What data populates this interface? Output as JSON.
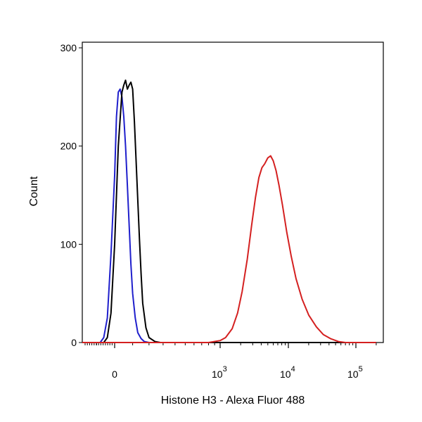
{
  "chart_data": {
    "type": "line",
    "title": "",
    "xlabel": "Histone H3 - Alexa Fluor 488",
    "ylabel": "Count",
    "x_scale": "biexponential",
    "xlim": [
      -300,
      200000
    ],
    "ylim": [
      0,
      300
    ],
    "y_ticks": [
      {
        "value": 0,
        "label": "0"
      },
      {
        "value": 100,
        "label": "100"
      },
      {
        "value": 200,
        "label": "200"
      },
      {
        "value": 300,
        "label": "300"
      }
    ],
    "x_ticks": [
      {
        "value": 0,
        "base": "0",
        "exp": ""
      },
      {
        "value": 1000,
        "base": "10",
        "exp": "3"
      },
      {
        "value": 10000,
        "base": "10",
        "exp": "4"
      },
      {
        "value": 100000,
        "base": "10",
        "exp": "5"
      }
    ],
    "grid": false,
    "legend": "none",
    "series": [
      {
        "color": "#1f1fcc",
        "x": [
          -300,
          -80,
          -60,
          -40,
          -20,
          0,
          10,
          20,
          30,
          40,
          50,
          60,
          70,
          80,
          90,
          100,
          115,
          130,
          150,
          170,
          200,
          250,
          1500,
          200000
        ],
        "y": [
          0,
          0,
          5,
          25,
          90,
          170,
          230,
          255,
          258,
          250,
          230,
          200,
          160,
          120,
          80,
          50,
          25,
          10,
          4,
          1,
          0,
          0,
          0,
          0
        ]
      },
      {
        "color": "#000000",
        "x": [
          -300,
          -60,
          -40,
          -20,
          0,
          20,
          40,
          50,
          60,
          70,
          80,
          90,
          100,
          110,
          120,
          130,
          140,
          150,
          160,
          180,
          200,
          240,
          280,
          350,
          200000
        ],
        "y": [
          0,
          0,
          5,
          30,
          100,
          200,
          255,
          262,
          267,
          258,
          262,
          265,
          258,
          225,
          185,
          145,
          105,
          70,
          40,
          15,
          5,
          1,
          0,
          0,
          0
        ]
      },
      {
        "color": "#d42020",
        "x": [
          -300,
          800,
          1000,
          1200,
          1500,
          1800,
          2100,
          2500,
          2900,
          3300,
          3700,
          4100,
          4500,
          5000,
          5500,
          6000,
          6600,
          7300,
          8200,
          9500,
          11000,
          13000,
          16000,
          20000,
          26000,
          33000,
          42000,
          55000,
          70000,
          200000
        ],
        "y": [
          0,
          0,
          2,
          5,
          14,
          30,
          52,
          85,
          120,
          148,
          168,
          178,
          182,
          188,
          190,
          185,
          175,
          160,
          140,
          112,
          88,
          65,
          44,
          28,
          16,
          8,
          4,
          1,
          0,
          0
        ]
      }
    ]
  }
}
